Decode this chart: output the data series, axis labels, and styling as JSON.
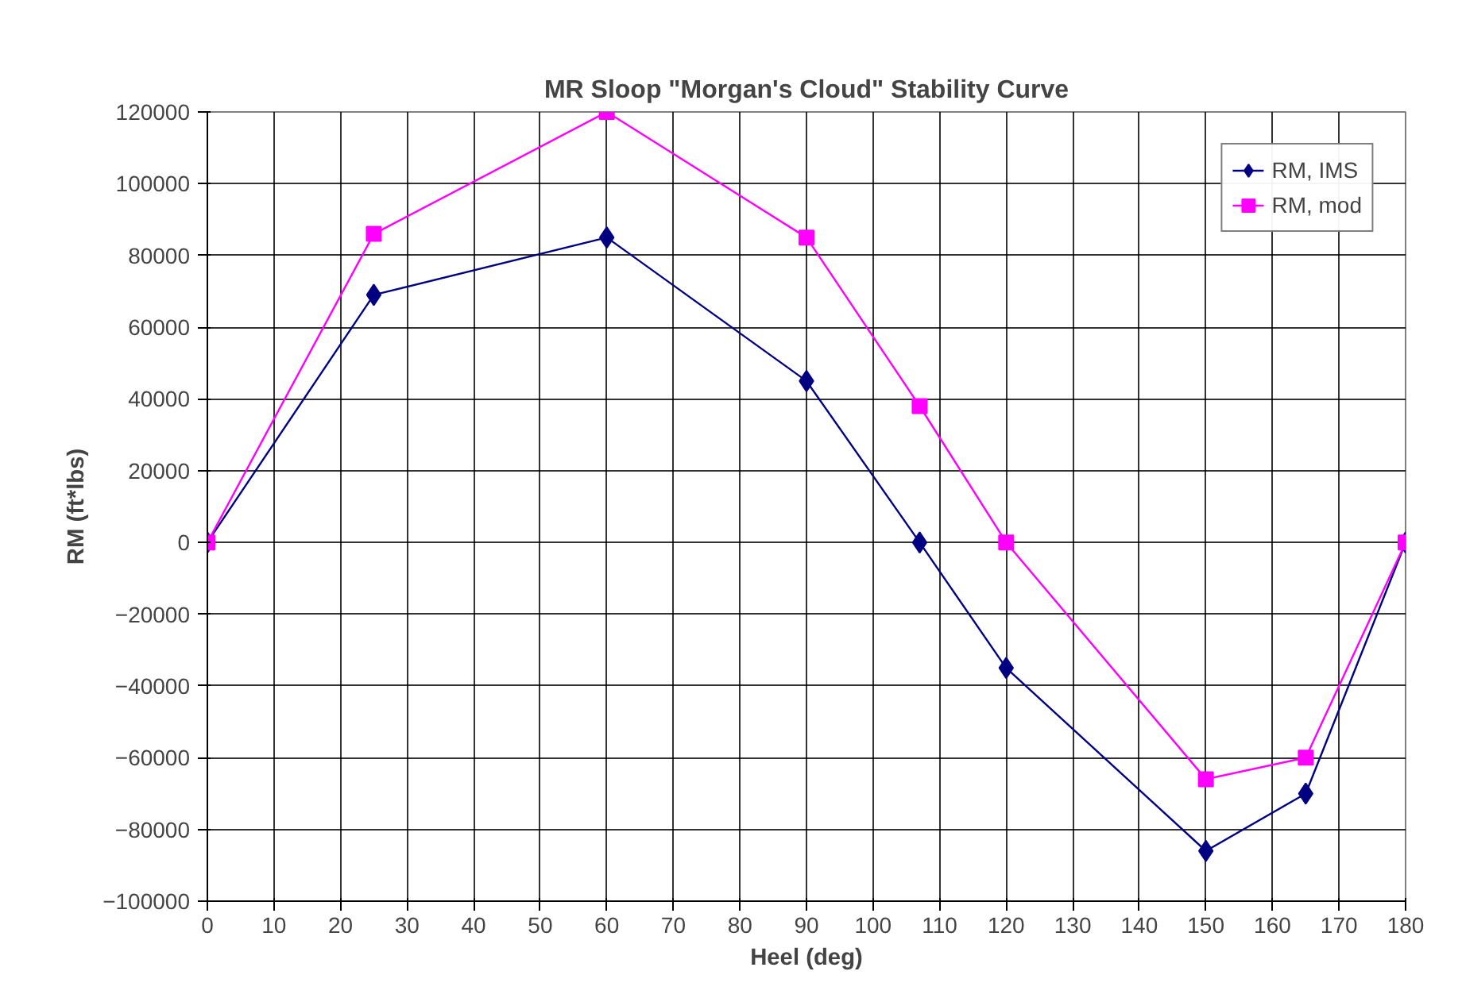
{
  "chart_data": {
    "type": "line",
    "title": "MR Sloop \"Morgan's Cloud\" Stability Curve",
    "xlabel": "Heel (deg)",
    "ylabel": "RM (ft*lbs)",
    "x": [
      0,
      25,
      60,
      90,
      107,
      120,
      150,
      165,
      180
    ],
    "series": [
      {
        "name": "RM, IMS",
        "color": "#000080",
        "marker": "diamond",
        "values": [
          0,
          69000,
          85000,
          45000,
          0,
          -35000,
          -86000,
          -70000,
          0
        ]
      },
      {
        "name": "RM, mod",
        "color": "#ff00ff",
        "marker": "square",
        "values": [
          0,
          86000,
          120000,
          85000,
          38000,
          0,
          -66000,
          -60000,
          0
        ]
      }
    ],
    "xlim": [
      0,
      180
    ],
    "xticks": [
      0,
      10,
      20,
      30,
      40,
      50,
      60,
      70,
      80,
      90,
      100,
      110,
      120,
      130,
      140,
      150,
      160,
      170,
      180
    ],
    "ylim": [
      -100000,
      120000
    ],
    "yticks": [
      -100000,
      -80000,
      -60000,
      -40000,
      -20000,
      0,
      20000,
      40000,
      60000,
      80000,
      100000,
      120000
    ],
    "grid": true,
    "legend": "top right"
  }
}
